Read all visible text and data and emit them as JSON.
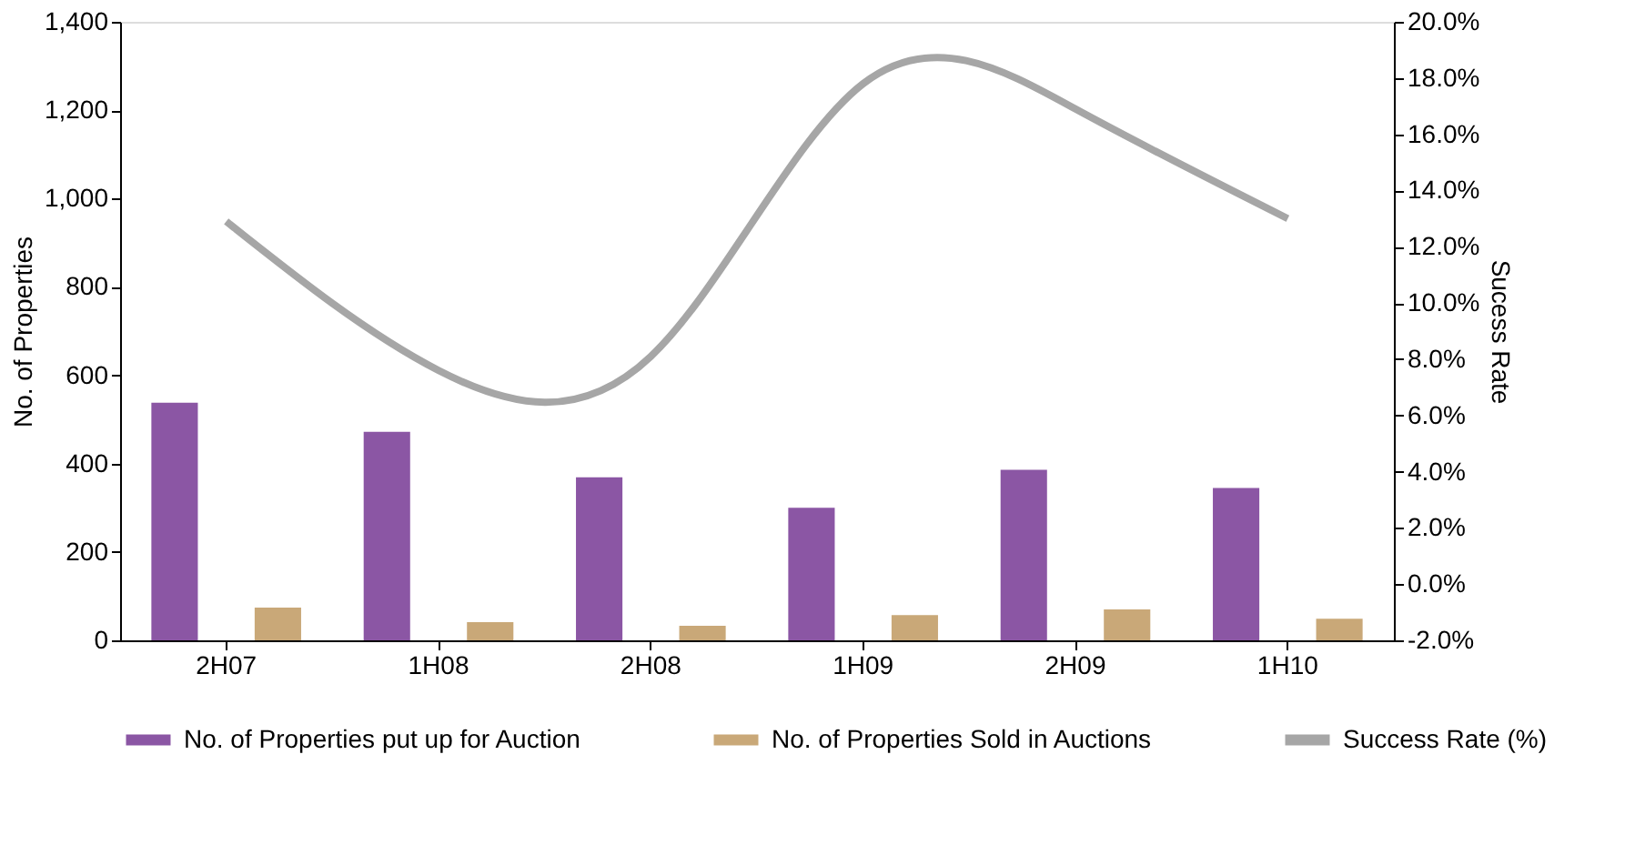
{
  "chart_data": {
    "type": "bar",
    "categories": [
      "2H07",
      "1H08",
      "2H08",
      "1H09",
      "2H09",
      "1H10"
    ],
    "ylabel": "No. of Properties",
    "y2label": "Sucess Rate",
    "ylim": [
      0,
      1400
    ],
    "yticks": [
      {
        "value": 0,
        "label": "0"
      },
      {
        "value": 200,
        "label": "200"
      },
      {
        "value": 400,
        "label": "400"
      },
      {
        "value": 600,
        "label": "600"
      },
      {
        "value": 800,
        "label": "800"
      },
      {
        "value": 1000,
        "label": "1,000"
      },
      {
        "value": 1200,
        "label": "1,200"
      },
      {
        "value": 1400,
        "label": "1,400"
      }
    ],
    "y2lim": [
      -2,
      20
    ],
    "y2ticks": [
      {
        "value": -2,
        "label": "-2.0%"
      },
      {
        "value": 0,
        "label": "0.0%"
      },
      {
        "value": 2,
        "label": "2.0%"
      },
      {
        "value": 4,
        "label": "4.0%"
      },
      {
        "value": 6,
        "label": "6.0%"
      },
      {
        "value": 8,
        "label": "8.0%"
      },
      {
        "value": 10,
        "label": "10.0%"
      },
      {
        "value": 12,
        "label": "12.0%"
      },
      {
        "value": 14,
        "label": "14.0%"
      },
      {
        "value": 16,
        "label": "16.0%"
      },
      {
        "value": 18,
        "label": "18.0%"
      },
      {
        "value": 20,
        "label": "20.0%"
      }
    ],
    "grid": false,
    "legend": "bottom",
    "marker": "none",
    "line_style": "solid",
    "series": [
      {
        "name": "No. of Properties put up for Auction",
        "color": "#8b56a4",
        "values": [
          538,
          472,
          369,
          300,
          386,
          345
        ]
      },
      {
        "name": "No. of Properties Sold in Auctions",
        "color": "#c9a878",
        "values": [
          74,
          41,
          33,
          57,
          70,
          49
        ]
      },
      {
        "name": "Success Rate (%)",
        "color": "#a6a6a6",
        "type": "line",
        "axis": "y2",
        "values": [
          12.9,
          7.6,
          8.1,
          17.8,
          16.9,
          13.0
        ]
      }
    ]
  }
}
